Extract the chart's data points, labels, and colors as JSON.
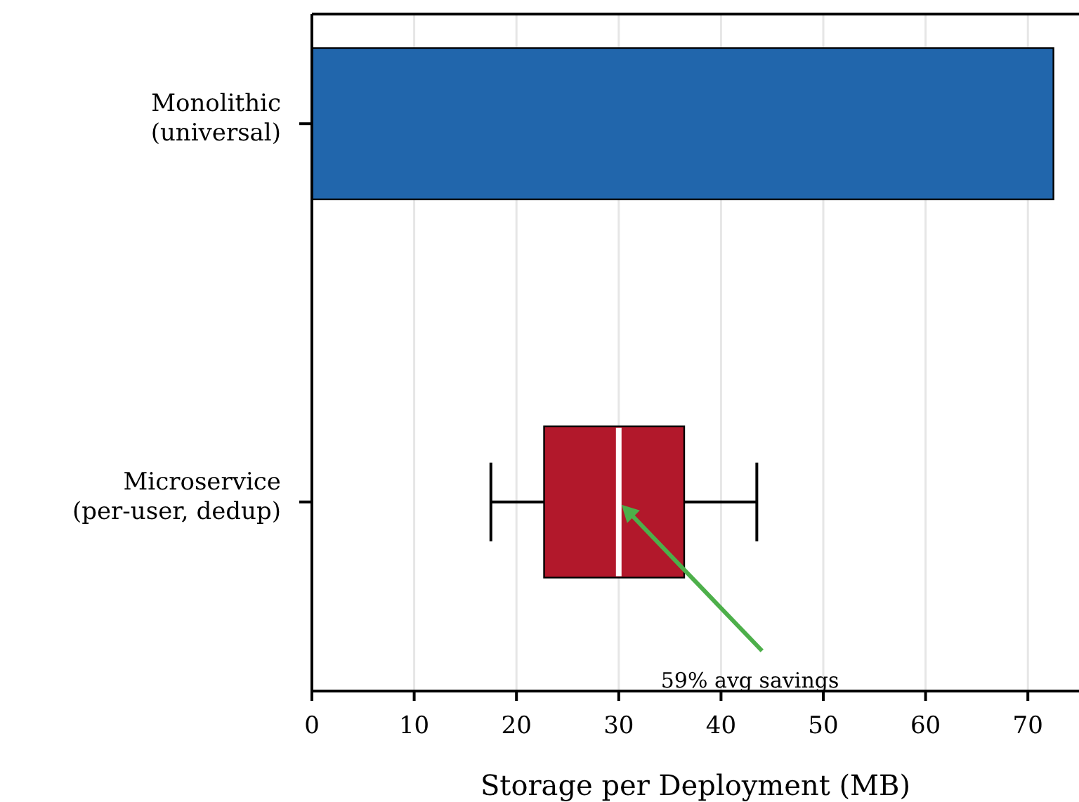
{
  "chart_data": {
    "type": "bar",
    "orientation": "horizontal",
    "xlabel": "Storage per Deployment (MB)",
    "categories": [
      "Monolithic\n(universal)",
      "Microservice\n(per-user, dedup)"
    ],
    "series": [
      {
        "color": "#2166ac",
        "values": [
          72.5,
          null
        ]
      },
      {
        "type": "box",
        "color": "#b2182b",
        "boxes": [
          null,
          {
            "low": 17.5,
            "q1": 22.7,
            "median": 30.0,
            "q3": 36.4,
            "high": 43.5
          }
        ]
      }
    ],
    "xlim": [
      0,
      75
    ],
    "xticks": [
      0,
      10,
      20,
      30,
      40,
      50,
      60,
      70
    ],
    "grid": "x",
    "annotations": [
      {
        "text": "59% avg savings",
        "x": 30,
        "y": "Microservice\n(per-user, dedup)"
      }
    ]
  }
}
